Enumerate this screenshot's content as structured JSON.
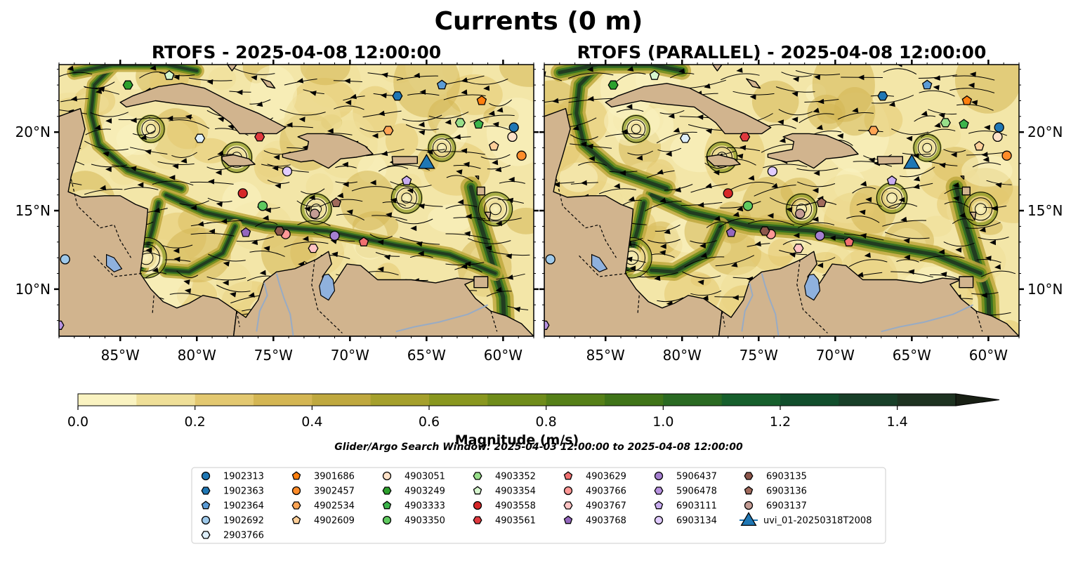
{
  "figure": {
    "title": "Currents (0 m)",
    "search_window": "Glider/Argo Search Window: 2025-04-03 12:00:00 to 2025-04-08 12:00:00"
  },
  "panels": [
    {
      "title": "RTOFS - 2025-04-08 12:00:00"
    },
    {
      "title": "RTOFS (PARALLEL) - 2025-04-08 12:00:00"
    }
  ],
  "map_extent": {
    "lon": [
      -89,
      -58
    ],
    "lat": [
      7,
      24.3
    ]
  },
  "lon_ticks": [
    "85°W",
    "80°W",
    "75°W",
    "70°W",
    "65°W",
    "60°W"
  ],
  "lat_ticks": [
    "20°N",
    "15°N",
    "10°N"
  ],
  "colorbar": {
    "label": "Magnitude (m/s)",
    "ticks": [
      "0.0",
      "0.2",
      "0.4",
      "0.6",
      "0.8",
      "1.0",
      "1.2",
      "1.4"
    ],
    "range": [
      0,
      1.5
    ],
    "extend": "max",
    "colors": [
      "#faf3c1",
      "#efdf98",
      "#e3c870",
      "#d4b653",
      "#bfa83e",
      "#a5a02c",
      "#89971f",
      "#6f8c1a",
      "#558017",
      "#3f7418",
      "#2a6a22",
      "#165f2c",
      "#114e2c",
      "#183f28",
      "#1d3220",
      "#181f14"
    ]
  },
  "colors": {
    "land": "#d1b48e",
    "lake": "#8fb1dd",
    "river": "#98abc4"
  },
  "legend": [
    {
      "name": "1902313",
      "marker": "circle",
      "color": "#1f77b4"
    },
    {
      "name": "1902363",
      "marker": "hexagon",
      "color": "#1f77b4"
    },
    {
      "name": "1902364",
      "marker": "pentagon",
      "color": "#5b9bd5"
    },
    {
      "name": "1902692",
      "marker": "circle",
      "color": "#9ec9ea"
    },
    {
      "name": "2903766",
      "marker": "hexagon",
      "color": "#deeffa"
    },
    {
      "name": "3901686",
      "marker": "pentagon",
      "color": "#ff7f0e"
    },
    {
      "name": "3902457",
      "marker": "circle",
      "color": "#ff8c2a"
    },
    {
      "name": "4902534",
      "marker": "hexagon",
      "color": "#ffa555"
    },
    {
      "name": "4902609",
      "marker": "pentagon",
      "color": "#ffcf99"
    },
    {
      "name": "4903051",
      "marker": "circle",
      "color": "#ffe2c8"
    },
    {
      "name": "4903249",
      "marker": "hexagon",
      "color": "#2ca02c"
    },
    {
      "name": "4903333",
      "marker": "pentagon",
      "color": "#3cb44b"
    },
    {
      "name": "4903350",
      "marker": "circle",
      "color": "#5fca5f"
    },
    {
      "name": "4903352",
      "marker": "hexagon",
      "color": "#98df8a"
    },
    {
      "name": "4903354",
      "marker": "pentagon",
      "color": "#d7f7cf"
    },
    {
      "name": "4903558",
      "marker": "circle",
      "color": "#d62728"
    },
    {
      "name": "4903561",
      "marker": "hexagon",
      "color": "#e0393e"
    },
    {
      "name": "4903629",
      "marker": "pentagon",
      "color": "#f07070"
    },
    {
      "name": "4903766",
      "marker": "circle",
      "color": "#ff9896"
    },
    {
      "name": "4903767",
      "marker": "hexagon",
      "color": "#ffc4c4"
    },
    {
      "name": "4903768",
      "marker": "pentagon",
      "color": "#9467bd"
    },
    {
      "name": "5906437",
      "marker": "circle",
      "color": "#a57fd0"
    },
    {
      "name": "5906478",
      "marker": "hexagon",
      "color": "#b893e0"
    },
    {
      "name": "6903111",
      "marker": "pentagon",
      "color": "#c9adf0"
    },
    {
      "name": "6903134",
      "marker": "circle",
      "color": "#e1ccff"
    },
    {
      "name": "6903135",
      "marker": "hexagon",
      "color": "#8c564b"
    },
    {
      "name": "6903136",
      "marker": "pentagon",
      "color": "#a06a5c"
    },
    {
      "name": "6903137",
      "marker": "circle",
      "color": "#c49c94"
    },
    {
      "name": "uvi_01-20250318T2008",
      "marker": "triangle",
      "color": "#1f77b4"
    }
  ],
  "float_positions": [
    {
      "name": "1902313",
      "lon": -59.3,
      "lat": 20.3
    },
    {
      "name": "1902363",
      "lon": -66.9,
      "lat": 22.3
    },
    {
      "name": "1902364",
      "lon": -64.0,
      "lat": 23.0
    },
    {
      "name": "1902692",
      "lon": -88.6,
      "lat": 11.9
    },
    {
      "name": "2903766",
      "lon": -79.8,
      "lat": 19.6
    },
    {
      "name": "3901686",
      "lon": -61.4,
      "lat": 22.0
    },
    {
      "name": "3902457",
      "lon": -58.8,
      "lat": 18.5
    },
    {
      "name": "4902534",
      "lon": -67.5,
      "lat": 20.1
    },
    {
      "name": "4902609",
      "lon": -60.6,
      "lat": 19.1
    },
    {
      "name": "4903051",
      "lon": -59.4,
      "lat": 19.7
    },
    {
      "name": "4903249",
      "lon": -84.5,
      "lat": 23.0
    },
    {
      "name": "4903333",
      "lon": -61.6,
      "lat": 20.5
    },
    {
      "name": "4903350",
      "lon": -75.7,
      "lat": 15.3
    },
    {
      "name": "4903352",
      "lon": -62.8,
      "lat": 20.6
    },
    {
      "name": "4903354",
      "lon": -81.8,
      "lat": 23.6
    },
    {
      "name": "4903558",
      "lon": -77.0,
      "lat": 16.1
    },
    {
      "name": "4903561",
      "lon": -75.9,
      "lat": 19.7
    },
    {
      "name": "4903629",
      "lon": -69.1,
      "lat": 13.0
    },
    {
      "name": "4903766",
      "lon": -74.2,
      "lat": 13.5
    },
    {
      "name": "4903767",
      "lon": -72.4,
      "lat": 12.6
    },
    {
      "name": "4903768",
      "lon": -76.8,
      "lat": 13.6
    },
    {
      "name": "5906437",
      "lon": -71.0,
      "lat": 13.4
    },
    {
      "name": "5906478",
      "lon": -89.0,
      "lat": 7.7
    },
    {
      "name": "6903111",
      "lon": -66.3,
      "lat": 16.9
    },
    {
      "name": "6903134",
      "lon": -74.1,
      "lat": 17.5
    },
    {
      "name": "6903135",
      "lon": -74.6,
      "lat": 13.7
    },
    {
      "name": "6903136",
      "lon": -70.9,
      "lat": 15.5
    },
    {
      "name": "6903137",
      "lon": -72.3,
      "lat": 14.8
    }
  ],
  "glider_position": {
    "name": "uvi_01-20250318T2008",
    "lon": -65.0,
    "lat": 18.1
  }
}
